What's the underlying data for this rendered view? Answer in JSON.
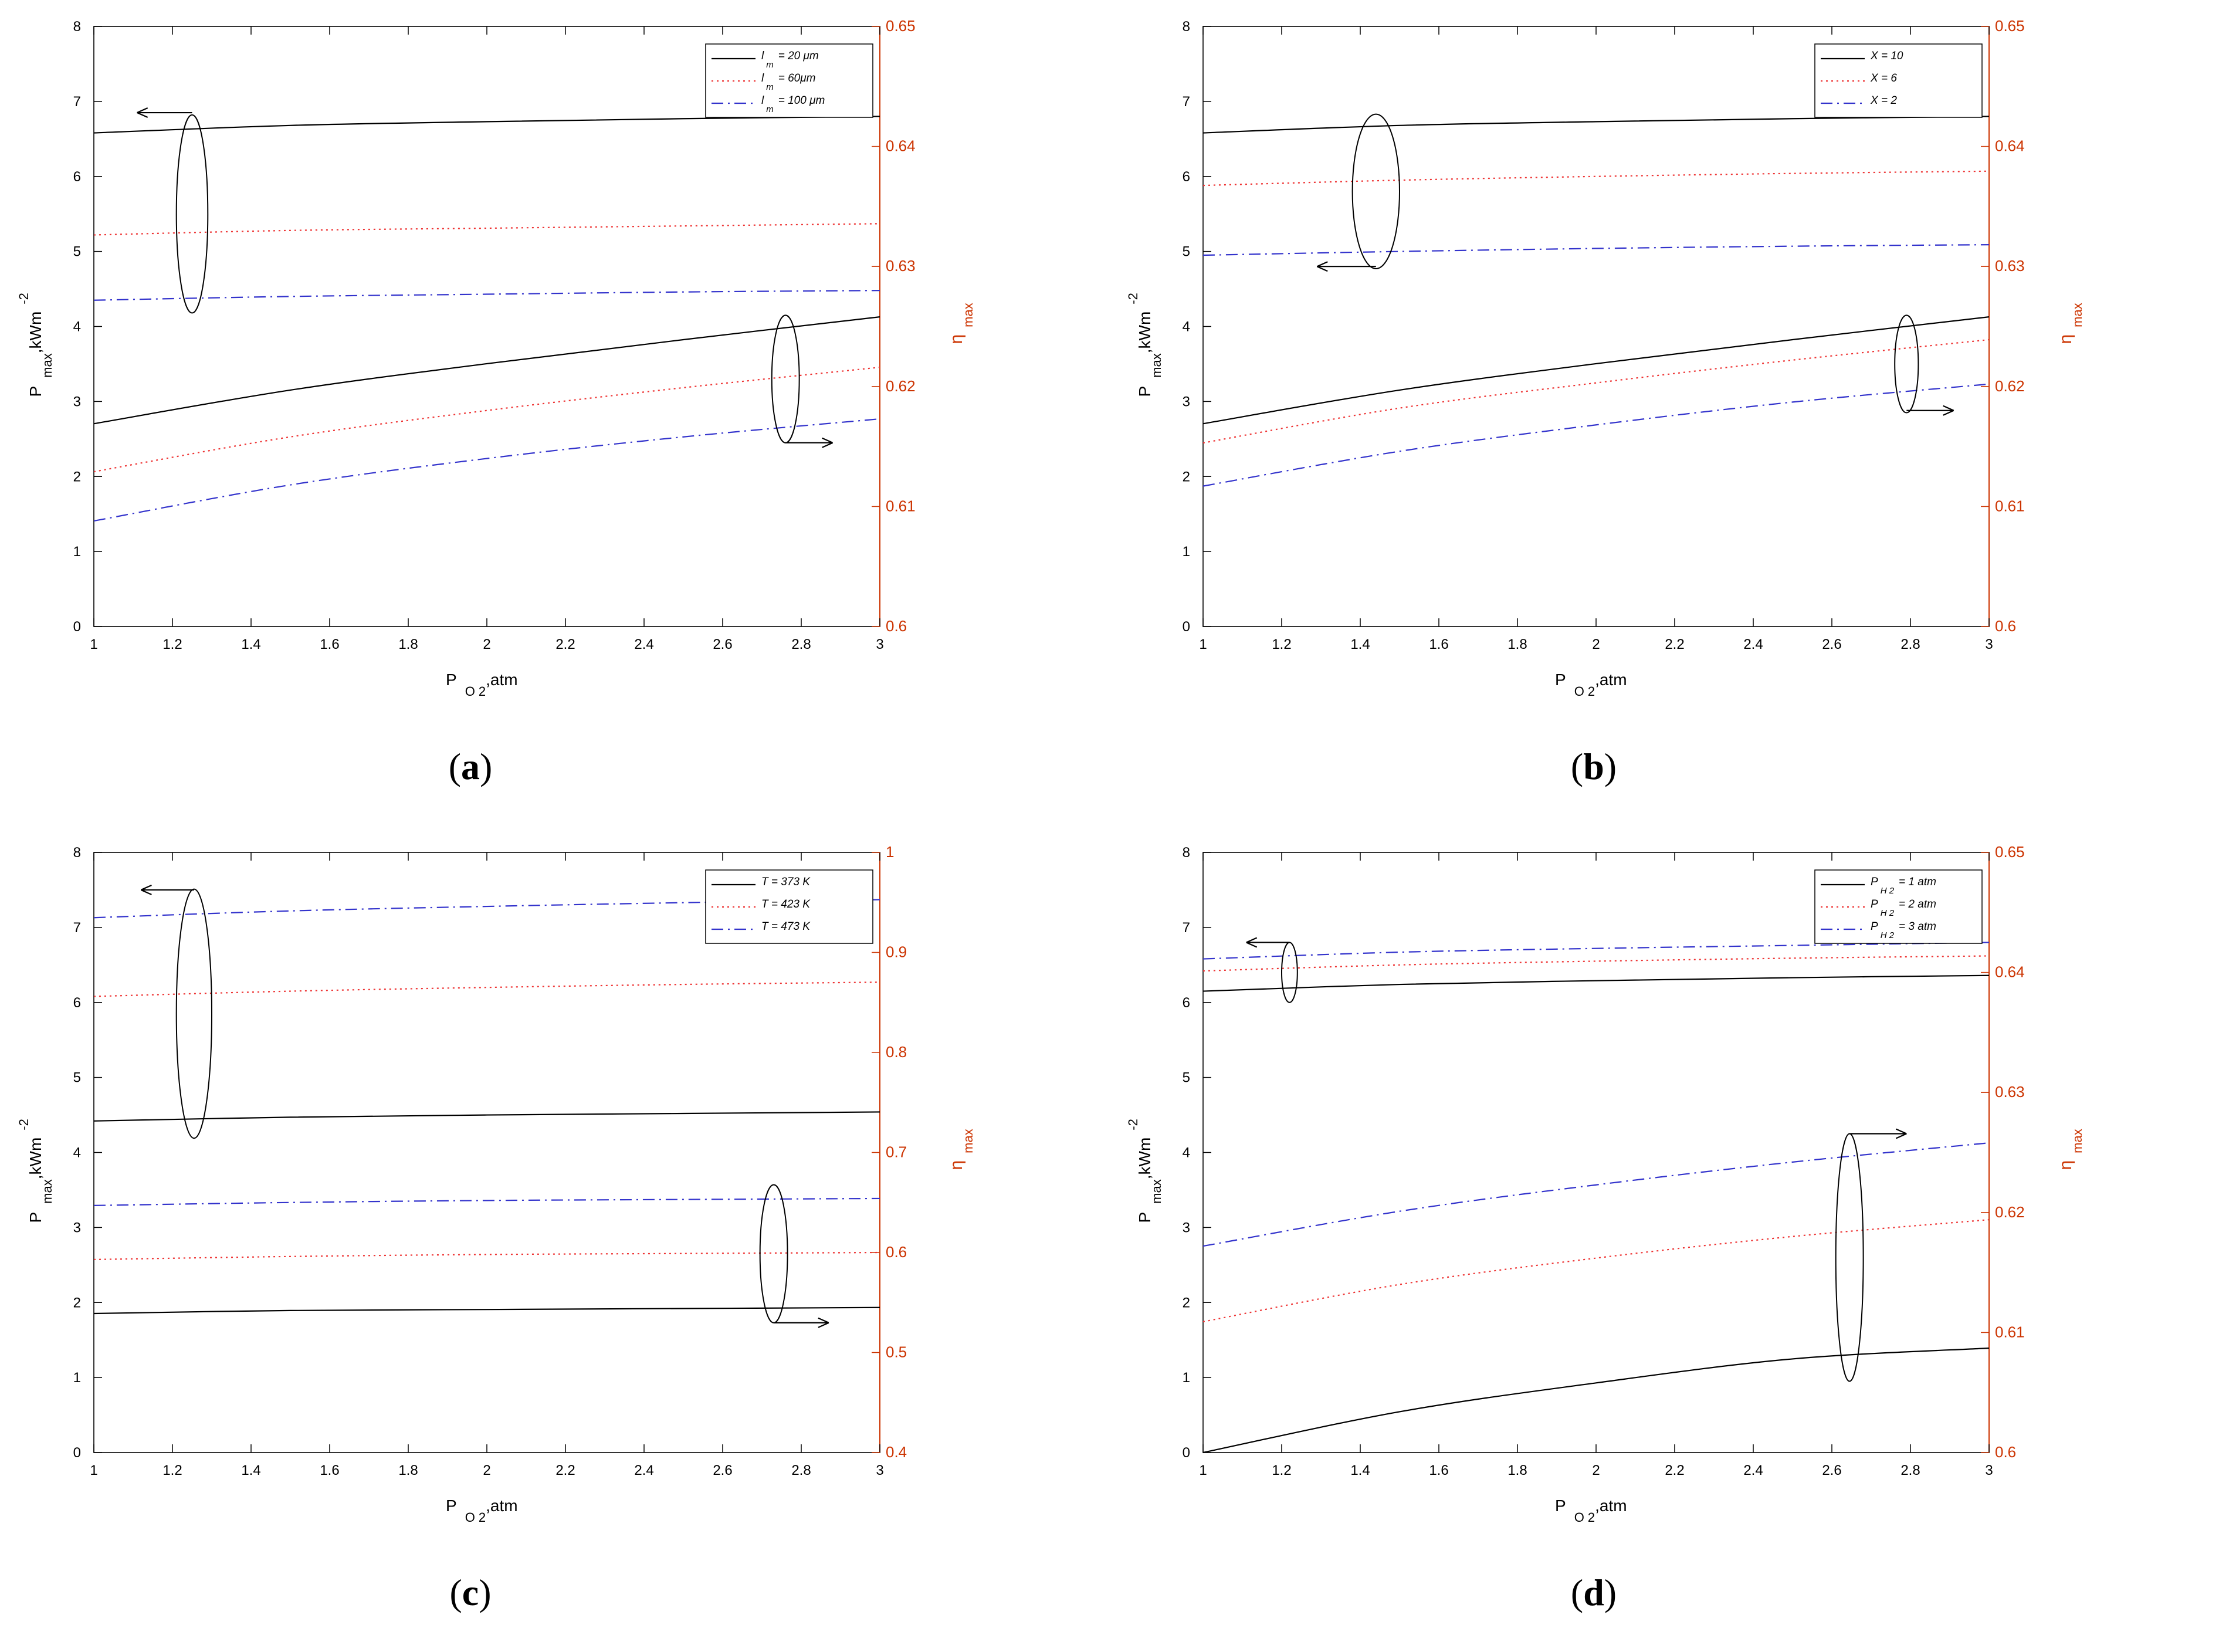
{
  "colors": {
    "left_axis": "#000000",
    "right_axis": "#cc3300",
    "black": "#000000",
    "red": "#ee3333",
    "blue": "#3333cc"
  },
  "chart_data": [
    {
      "id": "a",
      "caption_letter": "a",
      "type": "line",
      "xlabel_main": "P",
      "xlabel_sub": "O 2",
      "xlabel_tail": ",atm",
      "ylabel_main": "P",
      "ylabel_sub": "max",
      "ylabel_tail": ",kWm",
      "ylabel_sup": "-2",
      "y2label_main": "η",
      "y2label_sub": "max",
      "xlim": [
        1,
        3
      ],
      "xticks": [
        "1",
        "1.2",
        "1.4",
        "1.6",
        "1.8",
        "2",
        "2.2",
        "2.4",
        "2.6",
        "2.8",
        "3"
      ],
      "ylim": [
        0,
        8
      ],
      "yticks": [
        "0",
        "1",
        "2",
        "3",
        "4",
        "5",
        "6",
        "7",
        "8"
      ],
      "y2lim": [
        0.6,
        0.65
      ],
      "y2ticks": [
        "0.6",
        "0.61",
        "0.62",
        "0.63",
        "0.64",
        "0.65"
      ],
      "legend": [
        {
          "pre": "l",
          "sub": "m",
          "post": "= 20 μm",
          "style": "solid",
          "color": "black"
        },
        {
          "pre": "l",
          "sub": "m",
          "post": "= 60μm",
          "style": "dotted",
          "color": "red"
        },
        {
          "pre": "l",
          "sub": "m",
          "post": "= 100 μm",
          "style": "dashdot",
          "color": "blue"
        }
      ],
      "series": [
        {
          "name": "P_max l_m=20 μm",
          "axis": "left",
          "style": "solid",
          "color": "black",
          "x": [
            1,
            1.5,
            2,
            2.5,
            3
          ],
          "values": [
            6.58,
            6.68,
            6.73,
            6.77,
            6.8
          ]
        },
        {
          "name": "P_max l_m=60μm",
          "axis": "left",
          "style": "dotted",
          "color": "red",
          "x": [
            1,
            1.5,
            2,
            2.5,
            3
          ],
          "values": [
            5.22,
            5.28,
            5.31,
            5.34,
            5.37
          ]
        },
        {
          "name": "P_max l_m=100 μm",
          "axis": "left",
          "style": "dashdot",
          "color": "blue",
          "x": [
            1,
            1.5,
            2,
            2.5,
            3
          ],
          "values": [
            4.35,
            4.4,
            4.43,
            4.46,
            4.48
          ]
        },
        {
          "name": "η_max l_m=20 μm",
          "axis": "right",
          "style": "solid",
          "color": "black",
          "x": [
            1,
            1.5,
            2,
            2.5,
            3
          ],
          "values": [
            0.6169,
            0.6197,
            0.6219,
            0.6239,
            0.6258
          ]
        },
        {
          "name": "η_max l_m=60μm",
          "axis": "right",
          "style": "dotted",
          "color": "red",
          "x": [
            1,
            1.5,
            2,
            2.5,
            3
          ],
          "values": [
            0.6129,
            0.6158,
            0.618,
            0.6199,
            0.6216
          ]
        },
        {
          "name": "η_max l_m=100 μm",
          "axis": "right",
          "style": "dashdot",
          "color": "blue",
          "x": [
            1,
            1.5,
            2,
            2.5,
            3
          ],
          "values": [
            0.6088,
            0.6118,
            0.614,
            0.6158,
            0.6173
          ]
        }
      ],
      "annotations": [
        {
          "kind": "ellipse",
          "cx": 1.25,
          "cy": 5.5,
          "rx": 0.04,
          "ry": 1.32,
          "axis": "left"
        },
        {
          "kind": "arrow",
          "x1": 1.25,
          "y1": 6.85,
          "x2": 1.11,
          "y2": 6.85,
          "axis": "left"
        },
        {
          "kind": "ellipse",
          "cx": 2.76,
          "cy": 3.3,
          "rx": 0.035,
          "ry": 0.85,
          "axis": "left"
        },
        {
          "kind": "arrow",
          "x1": 2.76,
          "y1": 2.45,
          "x2": 2.88,
          "y2": 2.45,
          "axis": "left"
        }
      ]
    },
    {
      "id": "b",
      "caption_letter": "b",
      "type": "line",
      "xlabel_main": "P",
      "xlabel_sub": "O 2",
      "xlabel_tail": ",atm",
      "ylabel_main": "P",
      "ylabel_sub": "max",
      "ylabel_tail": ",kWm",
      "ylabel_sup": "-2",
      "y2label_main": "η",
      "y2label_sub": "max",
      "xlim": [
        1,
        3
      ],
      "xticks": [
        "1",
        "1.2",
        "1.4",
        "1.6",
        "1.8",
        "2",
        "2.2",
        "2.4",
        "2.6",
        "2.8",
        "3"
      ],
      "ylim": [
        0,
        8
      ],
      "yticks": [
        "0",
        "1",
        "2",
        "3",
        "4",
        "5",
        "6",
        "7",
        "8"
      ],
      "y2lim": [
        0.6,
        0.65
      ],
      "y2ticks": [
        "0.6",
        "0.61",
        "0.62",
        "0.63",
        "0.64",
        "0.65"
      ],
      "legend": [
        {
          "pre": "X = 10",
          "sub": "",
          "post": "",
          "style": "solid",
          "color": "black"
        },
        {
          "pre": "X = 6",
          "sub": "",
          "post": "",
          "style": "dotted",
          "color": "red"
        },
        {
          "pre": "X = 2",
          "sub": "",
          "post": "",
          "style": "dashdot",
          "color": "blue"
        }
      ],
      "series": [
        {
          "name": "P_max X=10",
          "axis": "left",
          "style": "solid",
          "color": "black",
          "x": [
            1,
            1.5,
            2,
            2.5,
            3
          ],
          "values": [
            6.58,
            6.68,
            6.73,
            6.77,
            6.8
          ]
        },
        {
          "name": "P_max X=6",
          "axis": "left",
          "style": "dotted",
          "color": "red",
          "x": [
            1,
            1.5,
            2,
            2.5,
            3
          ],
          "values": [
            5.88,
            5.95,
            6.0,
            6.04,
            6.07
          ]
        },
        {
          "name": "P_max X=2",
          "axis": "left",
          "style": "dashdot",
          "color": "blue",
          "x": [
            1,
            1.5,
            2,
            2.5,
            3
          ],
          "values": [
            4.95,
            5.0,
            5.04,
            5.07,
            5.09
          ]
        },
        {
          "name": "η_max X=10",
          "axis": "right",
          "style": "solid",
          "color": "black",
          "x": [
            1,
            1.5,
            2,
            2.5,
            3
          ],
          "values": [
            0.6169,
            0.6197,
            0.6219,
            0.6239,
            0.6258
          ]
        },
        {
          "name": "η_max X=6",
          "axis": "right",
          "style": "dotted",
          "color": "red",
          "x": [
            1,
            1.5,
            2,
            2.5,
            3
          ],
          "values": [
            0.6153,
            0.6182,
            0.6203,
            0.6222,
            0.6239
          ]
        },
        {
          "name": "η_max X=2",
          "axis": "right",
          "style": "dashdot",
          "color": "blue",
          "x": [
            1,
            1.5,
            2,
            2.5,
            3
          ],
          "values": [
            0.6117,
            0.6146,
            0.6168,
            0.6187,
            0.6202
          ]
        }
      ],
      "annotations": [
        {
          "kind": "ellipse",
          "cx": 1.44,
          "cy": 5.8,
          "rx": 0.06,
          "ry": 1.03,
          "axis": "left"
        },
        {
          "kind": "arrow",
          "x1": 1.44,
          "y1": 4.8,
          "x2": 1.29,
          "y2": 4.8,
          "axis": "left"
        },
        {
          "kind": "ellipse",
          "cx": 2.79,
          "cy": 3.5,
          "rx": 0.03,
          "ry": 0.65,
          "axis": "left"
        },
        {
          "kind": "arrow",
          "x1": 2.79,
          "y1": 2.88,
          "x2": 2.91,
          "y2": 2.88,
          "axis": "left"
        }
      ]
    },
    {
      "id": "c",
      "caption_letter": "c",
      "type": "line",
      "xlabel_main": "P",
      "xlabel_sub": "O 2",
      "xlabel_tail": ",atm",
      "ylabel_main": "P",
      "ylabel_sub": "max",
      "ylabel_tail": ",kWm",
      "ylabel_sup": "-2",
      "y2label_main": "η",
      "y2label_sub": "max",
      "xlim": [
        1,
        3
      ],
      "xticks": [
        "1",
        "1.2",
        "1.4",
        "1.6",
        "1.8",
        "2",
        "2.2",
        "2.4",
        "2.6",
        "2.8",
        "3"
      ],
      "ylim": [
        0,
        8
      ],
      "yticks": [
        "0",
        "1",
        "2",
        "3",
        "4",
        "5",
        "6",
        "7",
        "8"
      ],
      "y2lim": [
        0.4,
        1
      ],
      "y2ticks": [
        "0.4",
        "0.5",
        "0.6",
        "0.7",
        "0.8",
        "0.9",
        "1"
      ],
      "legend": [
        {
          "pre": "T = 373 K",
          "sub": "",
          "post": "",
          "style": "solid",
          "color": "black"
        },
        {
          "pre": "T = 423 K",
          "sub": "",
          "post": "",
          "style": "dotted",
          "color": "red"
        },
        {
          "pre": "T = 473 K",
          "sub": "",
          "post": "",
          "style": "dashdot",
          "color": "blue"
        }
      ],
      "series": [
        {
          "name": "P_max T=373 K",
          "axis": "left",
          "style": "solid",
          "color": "black",
          "x": [
            1,
            1.5,
            2,
            2.5,
            3
          ],
          "values": [
            4.42,
            4.47,
            4.5,
            4.52,
            4.54
          ]
        },
        {
          "name": "P_max T=423 K",
          "axis": "left",
          "style": "dotted",
          "color": "red",
          "x": [
            1,
            1.5,
            2,
            2.5,
            3
          ],
          "values": [
            6.08,
            6.15,
            6.2,
            6.24,
            6.27
          ]
        },
        {
          "name": "P_max T=473 K",
          "axis": "left",
          "style": "dashdot",
          "color": "blue",
          "x": [
            1,
            1.5,
            2,
            2.5,
            3
          ],
          "values": [
            7.13,
            7.22,
            7.28,
            7.33,
            7.37
          ]
        },
        {
          "name": "η_max T=373 K",
          "axis": "right",
          "style": "solid",
          "color": "black",
          "x": [
            1,
            1.5,
            2,
            2.5,
            3
          ],
          "values": [
            0.539,
            0.542,
            0.543,
            0.544,
            0.545
          ]
        },
        {
          "name": "η_max T=423 K",
          "axis": "right",
          "style": "dotted",
          "color": "red",
          "x": [
            1,
            1.5,
            2,
            2.5,
            3
          ],
          "values": [
            0.593,
            0.596,
            0.598,
            0.599,
            0.6
          ]
        },
        {
          "name": "η_max T=473 K",
          "axis": "right",
          "style": "dashdot",
          "color": "blue",
          "x": [
            1,
            1.5,
            2,
            2.5,
            3
          ],
          "values": [
            0.647,
            0.65,
            0.652,
            0.653,
            0.654
          ]
        }
      ],
      "annotations": [
        {
          "kind": "ellipse",
          "cx": 1.255,
          "cy": 5.85,
          "rx": 0.045,
          "ry": 1.66,
          "axis": "left"
        },
        {
          "kind": "arrow",
          "x1": 1.255,
          "y1": 7.5,
          "x2": 1.12,
          "y2": 7.5,
          "axis": "left"
        },
        {
          "kind": "ellipse",
          "cx": 2.73,
          "cy": 2.65,
          "rx": 0.035,
          "ry": 0.92,
          "axis": "left"
        },
        {
          "kind": "arrow",
          "x1": 2.73,
          "y1": 1.73,
          "x2": 2.87,
          "y2": 1.73,
          "axis": "left"
        }
      ]
    },
    {
      "id": "d",
      "caption_letter": "d",
      "type": "line",
      "xlabel_main": "P",
      "xlabel_sub": "O 2",
      "xlabel_tail": ",atm",
      "ylabel_main": "P",
      "ylabel_sub": "max",
      "ylabel_tail": ",kWm",
      "ylabel_sup": "-2",
      "y2label_main": "η",
      "y2label_sub": "max",
      "xlim": [
        1,
        3
      ],
      "xticks": [
        "1",
        "1.2",
        "1.4",
        "1.6",
        "1.8",
        "2",
        "2.2",
        "2.4",
        "2.6",
        "2.8",
        "3"
      ],
      "ylim": [
        0,
        8
      ],
      "yticks": [
        "0",
        "1",
        "2",
        "3",
        "4",
        "5",
        "6",
        "7",
        "8"
      ],
      "y2lim": [
        0.6,
        0.65
      ],
      "y2ticks": [
        "0.6",
        "0.61",
        "0.62",
        "0.63",
        "0.64",
        "0.65"
      ],
      "legend": [
        {
          "pre": "P",
          "sub": "H 2",
          "post": "= 1 atm",
          "style": "solid",
          "color": "black"
        },
        {
          "pre": "P",
          "sub": "H 2",
          "post": "= 2 atm",
          "style": "dotted",
          "color": "red"
        },
        {
          "pre": "P",
          "sub": "H 2",
          "post": "= 3 atm",
          "style": "dashdot",
          "color": "blue"
        }
      ],
      "series": [
        {
          "name": "P_max P_H2=1 atm",
          "axis": "left",
          "style": "solid",
          "color": "black",
          "x": [
            1,
            1.5,
            2,
            2.5,
            3
          ],
          "values": [
            6.15,
            6.24,
            6.29,
            6.33,
            6.36
          ]
        },
        {
          "name": "P_max P_H2=2 atm",
          "axis": "left",
          "style": "dotted",
          "color": "red",
          "x": [
            1,
            1.5,
            2,
            2.5,
            3
          ],
          "values": [
            6.42,
            6.5,
            6.55,
            6.59,
            6.62
          ]
        },
        {
          "name": "P_max P_H2=3 atm",
          "axis": "left",
          "style": "dashdot",
          "color": "blue",
          "x": [
            1,
            1.5,
            2,
            2.5,
            3
          ],
          "values": [
            6.58,
            6.67,
            6.72,
            6.76,
            6.8
          ]
        },
        {
          "name": "η_max P_H2=1 atm",
          "axis": "right",
          "style": "solid",
          "color": "black",
          "x": [
            1,
            1.5,
            2,
            2.5,
            3
          ],
          "values": [
            0.6,
            0.6034,
            0.6058,
            0.6078,
            0.6087
          ]
        },
        {
          "name": "η_max P_H2=2 atm",
          "axis": "right",
          "style": "dotted",
          "color": "red",
          "x": [
            1,
            1.5,
            2,
            2.5,
            3
          ],
          "values": [
            0.6109,
            0.614,
            0.6162,
            0.618,
            0.6194
          ]
        },
        {
          "name": "η_max P_H2=3 atm",
          "axis": "right",
          "style": "dashdot",
          "color": "blue",
          "x": [
            1,
            1.5,
            2,
            2.5,
            3
          ],
          "values": [
            0.6172,
            0.6201,
            0.6223,
            0.6242,
            0.6258
          ]
        }
      ],
      "annotations": [
        {
          "kind": "ellipse",
          "cx": 1.22,
          "cy": 6.4,
          "rx": 0.02,
          "ry": 0.4,
          "axis": "left"
        },
        {
          "kind": "arrow",
          "x1": 1.22,
          "y1": 6.8,
          "x2": 1.11,
          "y2": 6.8,
          "axis": "left"
        },
        {
          "kind": "ellipse",
          "cx": 2.645,
          "cy": 2.6,
          "rx": 0.035,
          "ry": 1.65,
          "axis": "left"
        },
        {
          "kind": "arrow",
          "x1": 2.645,
          "y1": 4.25,
          "x2": 2.79,
          "y2": 4.25,
          "axis": "left"
        }
      ]
    }
  ]
}
